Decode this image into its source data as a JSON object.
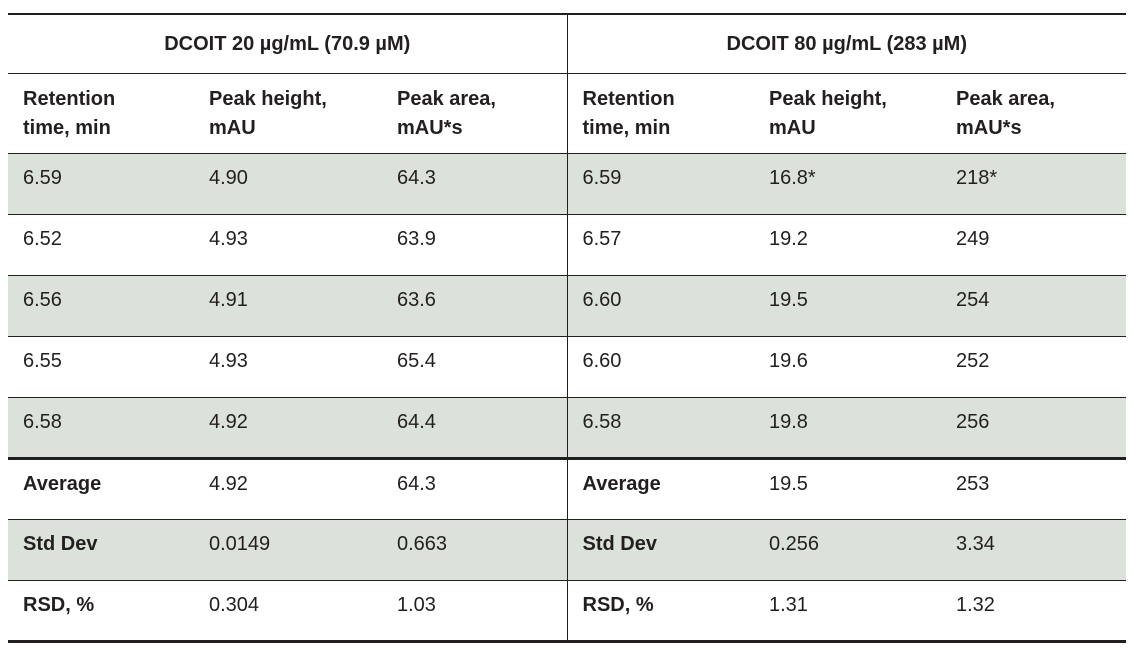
{
  "table": {
    "groups": [
      {
        "label": "DCOIT 20 µg/mL (70.9 µM)"
      },
      {
        "label": "DCOIT 80 µg/mL (283 µM)"
      }
    ],
    "columns": [
      {
        "line1": "Retention",
        "line2": "time, min"
      },
      {
        "line1": "Peak height,",
        "line2": "mAU"
      },
      {
        "line1": "Peak area,",
        "line2": "mAU*s"
      },
      {
        "line1": "Retention",
        "line2": "time, min"
      },
      {
        "line1": "Peak height,",
        "line2": "mAU"
      },
      {
        "line1": "Peak area,",
        "line2": "mAU*s"
      }
    ],
    "rows": [
      [
        "6.59",
        "4.90",
        "64.3",
        "6.59",
        "16.8*",
        "218*"
      ],
      [
        "6.52",
        "4.93",
        "63.9",
        "6.57",
        "19.2",
        "249"
      ],
      [
        "6.56",
        "4.91",
        "63.6",
        "6.60",
        "19.5",
        "254"
      ],
      [
        "6.55",
        "4.93",
        "65.4",
        "6.60",
        "19.6",
        "252"
      ],
      [
        "6.58",
        "4.92",
        "64.4",
        "6.58",
        "19.8",
        "256"
      ],
      [
        "Average",
        "4.92",
        "64.3",
        "Average",
        "19.5",
        "253"
      ],
      [
        "Std Dev",
        "0.0149",
        "0.663",
        "Std Dev",
        "0.256",
        "3.34"
      ],
      [
        "RSD, %",
        "0.304",
        "1.03",
        "RSD, %",
        "1.31",
        "1.32"
      ]
    ]
  }
}
